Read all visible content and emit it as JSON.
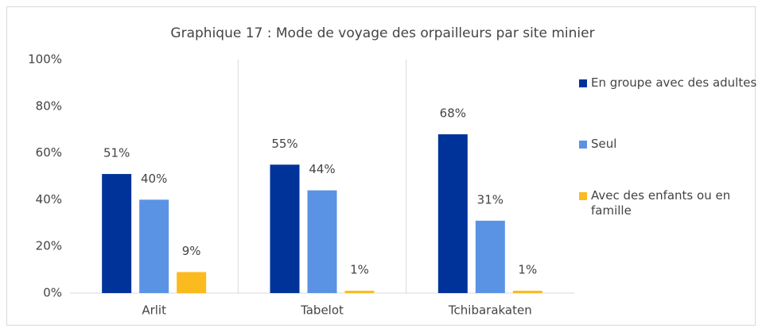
{
  "chart_data": {
    "type": "bar",
    "title": "Graphique 17 : Mode de voyage des orpailleurs par site minier",
    "categories": [
      "Arlit",
      "Tabelot",
      "Tchibarakaten"
    ],
    "series": [
      {
        "name": "En groupe avec des adultes",
        "color": "#00339a",
        "values": [
          51,
          55,
          68
        ],
        "value_labels": [
          "51%",
          "55%",
          "68%"
        ]
      },
      {
        "name": "Seul",
        "color": "#5b93e4",
        "values": [
          40,
          44,
          31
        ],
        "value_labels": [
          "40%",
          "44%",
          "31%"
        ]
      },
      {
        "name": "Avec des enfants ou en famille",
        "color": "#fbbb1e",
        "values": [
          9,
          1,
          1
        ],
        "value_labels": [
          "9%",
          "1%",
          "1%"
        ]
      }
    ],
    "ylim": [
      0,
      100
    ],
    "yticks": [
      {
        "value": 0,
        "label": "0%"
      },
      {
        "value": 20,
        "label": "20%"
      },
      {
        "value": 40,
        "label": "40%"
      },
      {
        "value": 60,
        "label": "60%"
      },
      {
        "value": 80,
        "label": "80%"
      },
      {
        "value": 100,
        "label": "100%"
      }
    ],
    "grid": false,
    "legend": "right"
  }
}
